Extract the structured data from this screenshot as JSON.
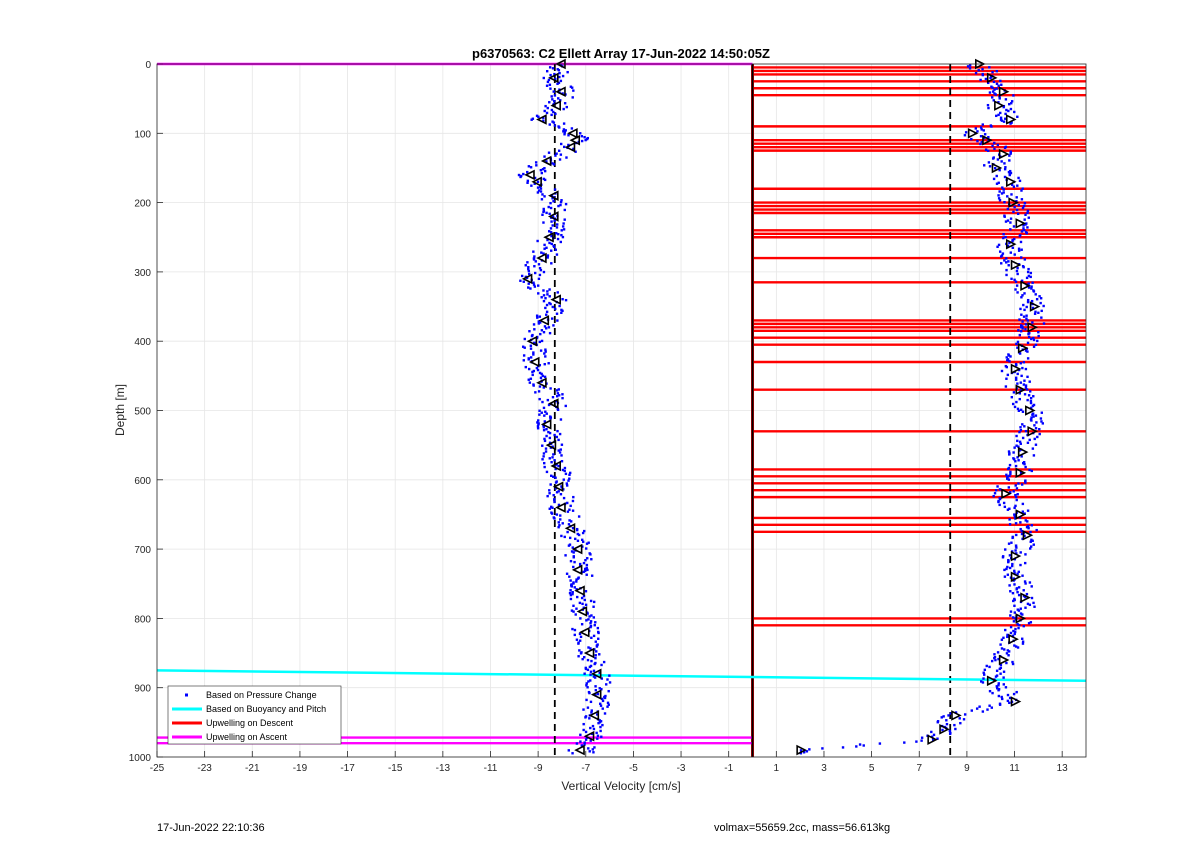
{
  "chart_data": {
    "type": "scatter",
    "title": "p6370563: C2 Ellett Array 17-Jun-2022 14:50:05Z",
    "xlabel": "Vertical Velocity [cm/s]",
    "ylabel": "Depth [m]",
    "xlim": [
      -25,
      14
    ],
    "ylim": [
      0,
      1000
    ],
    "y_reversed": true,
    "grid": true,
    "xticks": [
      -25,
      -23,
      -21,
      -19,
      -17,
      -15,
      -13,
      -11,
      -9,
      -7,
      -5,
      -3,
      -1,
      1,
      3,
      5,
      7,
      9,
      11,
      13
    ],
    "xtick_labels": [
      "-25",
      "-23",
      "-21",
      "-19",
      "-17",
      "-15",
      "-13",
      "-11",
      "-9",
      "-7",
      "-5",
      "-3",
      "-1",
      "1",
      "3",
      "5",
      "7",
      "9",
      "11",
      "13"
    ],
    "yticks": [
      0,
      100,
      200,
      300,
      400,
      500,
      600,
      700,
      800,
      900,
      1000
    ],
    "ytick_labels": [
      "0",
      "100",
      "200",
      "300",
      "400",
      "500",
      "600",
      "700",
      "800",
      "900",
      "1000"
    ],
    "legend_position": "bottom-left",
    "legend": [
      {
        "label": "Based on Pressure Change",
        "color": "#0000ff",
        "style": "dot"
      },
      {
        "label": "Based on Buoyancy and Pitch",
        "color": "#00ffff",
        "style": "line"
      },
      {
        "label": "Upwelling on Descent",
        "color": "#ff0000",
        "style": "line"
      },
      {
        "label": "Upwelling on Ascent",
        "color": "#ff00ff",
        "style": "line"
      }
    ],
    "series": [
      {
        "name": "Based on Pressure Change",
        "descent_profile": {
          "depth": [
            0,
            20,
            40,
            60,
            80,
            100,
            110,
            120,
            140,
            160,
            170,
            190,
            220,
            250,
            280,
            310,
            340,
            370,
            400,
            430,
            460,
            490,
            520,
            550,
            580,
            610,
            640,
            670,
            700,
            730,
            760,
            790,
            820,
            850,
            880,
            910,
            940,
            970,
            990
          ],
          "velocity": [
            -8.0,
            -8.3,
            -8.0,
            -8.2,
            -8.8,
            -7.5,
            -7.4,
            -7.6,
            -8.6,
            -9.3,
            -9.0,
            -8.3,
            -8.3,
            -8.5,
            -8.8,
            -9.4,
            -8.2,
            -8.7,
            -9.2,
            -9.1,
            -8.8,
            -8.3,
            -8.6,
            -8.4,
            -8.2,
            -8.1,
            -8.0,
            -7.6,
            -7.3,
            -7.3,
            -7.2,
            -7.1,
            -7.0,
            -6.8,
            -6.5,
            -6.5,
            -6.6,
            -6.8,
            -7.2
          ]
        },
        "ascent_profile": {
          "depth": [
            0,
            20,
            40,
            60,
            80,
            100,
            110,
            130,
            150,
            170,
            200,
            230,
            260,
            290,
            320,
            350,
            380,
            410,
            440,
            470,
            500,
            530,
            560,
            590,
            620,
            650,
            680,
            710,
            740,
            770,
            800,
            830,
            860,
            890,
            920,
            940,
            960,
            975,
            990
          ],
          "velocity": [
            9.5,
            10.0,
            10.5,
            10.3,
            10.8,
            9.2,
            9.8,
            10.5,
            10.2,
            10.8,
            10.9,
            11.2,
            10.8,
            11.0,
            11.4,
            11.8,
            11.7,
            11.3,
            11.0,
            11.2,
            11.6,
            11.7,
            11.3,
            11.2,
            10.6,
            11.2,
            11.5,
            11.0,
            11.0,
            11.4,
            11.2,
            10.9,
            10.5,
            10.0,
            11.0,
            8.5,
            8.0,
            7.5,
            2.0
          ]
        }
      },
      {
        "name": "Based on Buoyancy and Pitch",
        "x": [
          -25,
          14
        ],
        "depth": [
          875,
          890
        ]
      },
      {
        "name": "Upwelling on Descent",
        "depths": [
          5,
          10,
          15,
          25,
          35,
          45,
          90,
          110,
          115,
          120,
          125,
          180,
          200,
          205,
          210,
          215,
          240,
          245,
          250,
          280,
          315,
          370,
          375,
          380,
          385,
          395,
          405,
          430,
          470,
          530,
          585,
          595,
          605,
          615,
          625,
          655,
          665,
          675,
          800,
          810
        ],
        "x_range": [
          0,
          14
        ]
      },
      {
        "name": "Upwelling on Ascent",
        "depths": [
          0,
          972,
          980
        ],
        "x_range": [
          -25,
          0
        ]
      }
    ],
    "reference_lines": [
      {
        "x": -8.3,
        "style": "dashed",
        "color": "#000000"
      },
      {
        "x": 8.3,
        "style": "dashed",
        "color": "#000000"
      },
      {
        "x": 0,
        "style": "solid",
        "color": "#000000"
      }
    ]
  },
  "footer": {
    "timestamp": "17-Jun-2022 22:10:36",
    "volmax_mass": "volmax=55659.2cc, mass=56.613kg"
  }
}
